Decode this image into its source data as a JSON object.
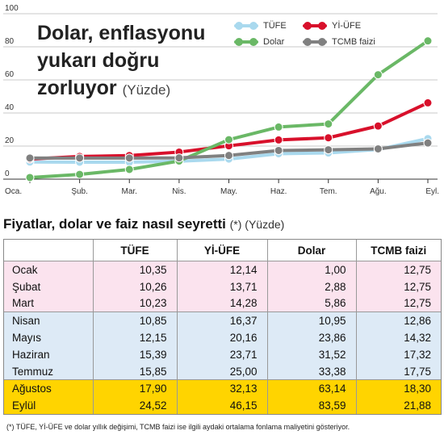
{
  "chart_data": {
    "type": "line",
    "title": "Dolar, enflasyonu yukarı doğru zorluyor",
    "unit": "(Yüzde)",
    "categories": [
      "Oca.",
      "Şub.",
      "Mar.",
      "Nis.",
      "May.",
      "Haz.",
      "Tem.",
      "Ağu.",
      "Eyl."
    ],
    "ylim": [
      0,
      100
    ],
    "yticks": [
      "0",
      "20",
      "40",
      "60",
      "80",
      "100"
    ],
    "grid": "horizontal",
    "legend_position": "top-right",
    "series": [
      {
        "name": "TÜFE",
        "color": "#a9d9ee",
        "values": [
          10.35,
          10.26,
          10.23,
          10.85,
          12.15,
          15.39,
          15.85,
          17.9,
          24.52
        ]
      },
      {
        "name": "Yİ-ÜFE",
        "color": "#d8102b",
        "values": [
          12.14,
          13.71,
          14.28,
          16.37,
          20.16,
          23.71,
          25.0,
          32.13,
          46.15
        ]
      },
      {
        "name": "Dolar",
        "color": "#6ab866",
        "values": [
          1.0,
          2.88,
          5.86,
          10.95,
          23.86,
          31.52,
          33.38,
          63.14,
          83.59
        ]
      },
      {
        "name": "TCMB faizi",
        "color": "#808080",
        "values": [
          12.75,
          12.75,
          12.75,
          12.86,
          14.32,
          17.32,
          17.75,
          18.3,
          21.88
        ]
      }
    ]
  },
  "table": {
    "title": "Fiyatlar, dolar ve faiz nasıl seyretti",
    "note": "(*) (Yüzde)",
    "headers": [
      "",
      "TÜFE",
      "Yİ-ÜFE",
      "Dolar",
      "TCMB faizi"
    ],
    "rows": [
      [
        "Ocak",
        "10,35",
        "12,14",
        "1,00",
        "12,75"
      ],
      [
        "Şubat",
        "10,26",
        "13,71",
        "2,88",
        "12,75"
      ],
      [
        "Mart",
        "10,23",
        "14,28",
        "5,86",
        "12,75"
      ],
      [
        "Nisan",
        "10,85",
        "16,37",
        "10,95",
        "12,86"
      ],
      [
        "Mayıs",
        "12,15",
        "20,16",
        "23,86",
        "14,32"
      ],
      [
        "Haziran",
        "15,39",
        "23,71",
        "31,52",
        "17,32"
      ],
      [
        "Temmuz",
        "15,85",
        "25,00",
        "33,38",
        "17,75"
      ],
      [
        "Ağustos",
        "17,90",
        "32,13",
        "63,14",
        "18,30"
      ],
      [
        "Eylül",
        "24,52",
        "46,15",
        "83,59",
        "21,88"
      ]
    ],
    "row_groups": [
      "pink",
      "pink",
      "pink",
      "blue",
      "blue",
      "blue",
      "blue",
      "yellow",
      "yellow"
    ]
  },
  "footnote": "(*) TÜFE, Yİ-ÜFE ve dolar yıllık değişimi, TCMB faizi ise ilgili aydaki ortalama fonlama maliyetini gösteriyor."
}
